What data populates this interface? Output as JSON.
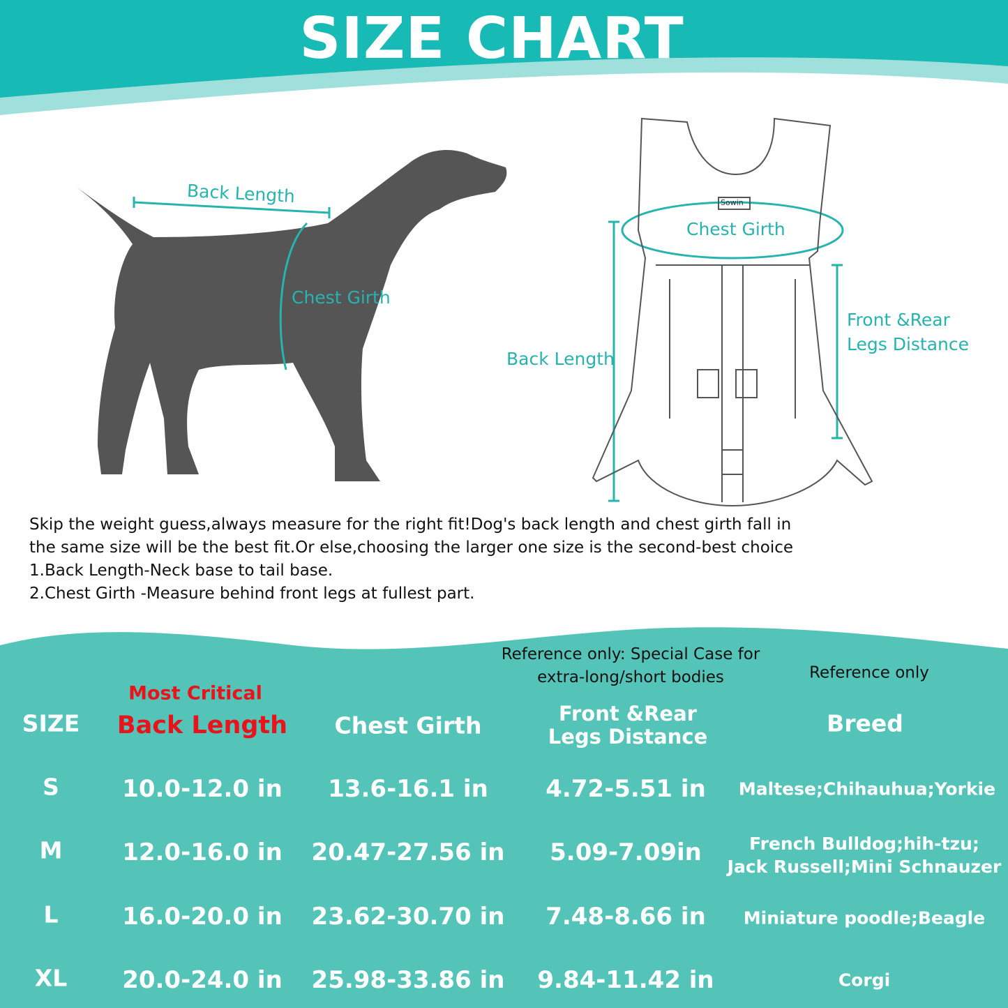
{
  "title": "SIZE CHART",
  "colors": {
    "header_teal": "#18bab5",
    "table_teal": "#55c4b8",
    "label_teal": "#27b3ae",
    "critical_red": "#e8141c",
    "dog": "#555555"
  },
  "dog_diagram": {
    "back_length": "Back Length",
    "chest_girth": "Chest Girth"
  },
  "carrier_diagram": {
    "logo": "Sowin",
    "chest_girth": "Chest Girth",
    "back_length": "Back Length",
    "legs_distance_line1": "Front &Rear",
    "legs_distance_line2": "Legs Distance"
  },
  "description": [
    "Skip the weight guess,always measure for the right fit!Dog's back length and chest girth fall in",
    "the same size will be the best fit.Or else,choosing the larger one size is the second-best choice",
    "1.Back Length-Neck base to tail base.",
    "2.Chest Girth -Measure behind front legs at fullest part."
  ],
  "table": {
    "notes": {
      "legs_line1": "Reference only: Special Case for",
      "legs_line2": "extra-long/short bodies",
      "breed": "Reference only",
      "back": "Most Critical"
    },
    "headers": {
      "size": "SIZE",
      "back": "Back Length",
      "chest": "Chest Girth",
      "legs_line1": "Front &Rear",
      "legs_line2": "Legs Distance",
      "breed": "Breed"
    },
    "rows": [
      {
        "size": "S",
        "back": "10.0-12.0 in",
        "chest": "13.6-16.1 in",
        "legs": "4.72-5.51 in",
        "breed": [
          "Maltese;Chihauhua;Yorkie"
        ]
      },
      {
        "size": "M",
        "back": "12.0-16.0 in",
        "chest": "20.47-27.56 in",
        "legs": "5.09-7.09in",
        "breed": [
          "French Bulldog;hih-tzu;",
          "Jack Russell;Mini Schnauzer"
        ]
      },
      {
        "size": "L",
        "back": "16.0-20.0 in",
        "chest": "23.62-30.70 in",
        "legs": "7.48-8.66 in",
        "breed": [
          "Miniature poodle;Beagle"
        ]
      },
      {
        "size": "XL",
        "back": "20.0-24.0 in",
        "chest": "25.98-33.86 in",
        "legs": "9.84-11.42 in",
        "breed": [
          "Corgi"
        ]
      }
    ]
  }
}
